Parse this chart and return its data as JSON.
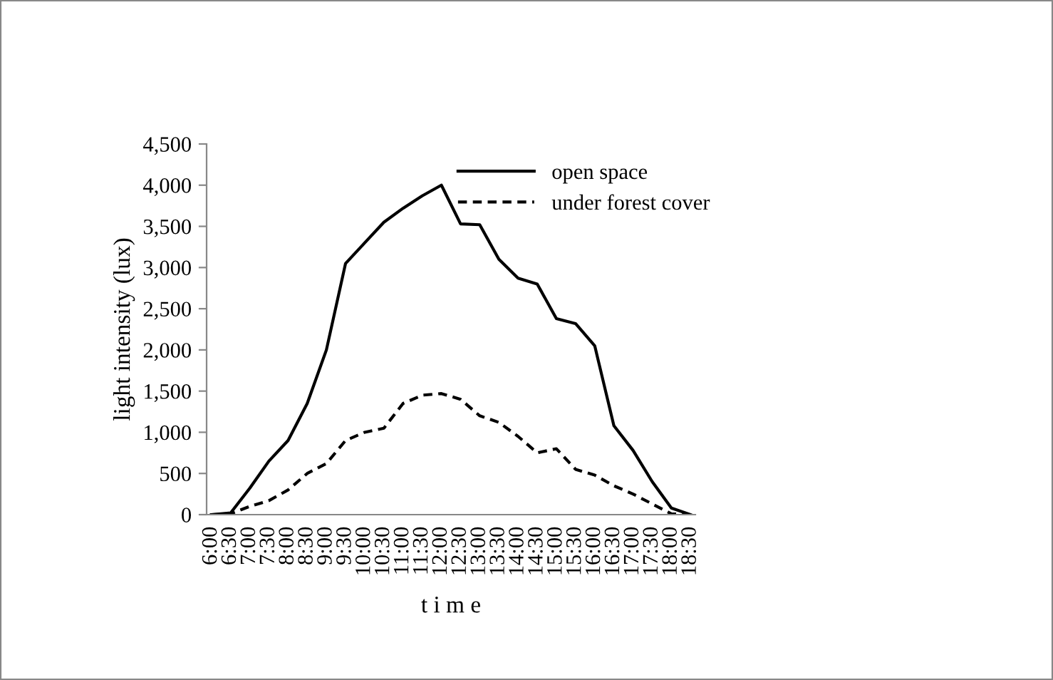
{
  "chart_data": {
    "type": "line",
    "xlabel": "t i m e",
    "ylabel": "light intensity (lux)",
    "categories": [
      "6:00",
      "6:30",
      "7:00",
      "7:30",
      "8:00",
      "8:30",
      "9:00",
      "9:30",
      "10:00",
      "10:30",
      "11:00",
      "11:30",
      "12:00",
      "12:30",
      "13:00",
      "13:30",
      "14:00",
      "14:30",
      "15:00",
      "15:30",
      "16:00",
      "16:30",
      "17:00",
      "17:30",
      "18:00",
      "18:30"
    ],
    "series": [
      {
        "name": "open space",
        "color": "#000000",
        "line_style": "solid",
        "values": [
          0,
          20,
          320,
          650,
          900,
          1350,
          2000,
          3050,
          3300,
          3550,
          3720,
          3870,
          4000,
          3530,
          3520,
          3100,
          2870,
          2800,
          2380,
          2320,
          2050,
          1080,
          780,
          400,
          80,
          0
        ]
      },
      {
        "name": "under forest cover",
        "color": "#000000",
        "line_style": "dashed",
        "values": [
          0,
          10,
          100,
          170,
          300,
          500,
          620,
          900,
          1000,
          1050,
          1350,
          1450,
          1470,
          1400,
          1200,
          1120,
          950,
          750,
          800,
          550,
          480,
          350,
          250,
          130,
          10,
          0
        ]
      }
    ],
    "ylim": [
      0,
      4500
    ],
    "yticks": [
      {
        "value": 0,
        "label": "0"
      },
      {
        "value": 500,
        "label": "500"
      },
      {
        "value": 1000,
        "label": "1,000"
      },
      {
        "value": 1500,
        "label": "1,500"
      },
      {
        "value": 2000,
        "label": "2,000"
      },
      {
        "value": 2500,
        "label": "2,500"
      },
      {
        "value": 3000,
        "label": "3,000"
      },
      {
        "value": 3500,
        "label": "3,500"
      },
      {
        "value": 4000,
        "label": "4,000"
      },
      {
        "value": 4500,
        "label": "4,500"
      }
    ],
    "grid": false,
    "legend": "top right",
    "marker": "none"
  }
}
